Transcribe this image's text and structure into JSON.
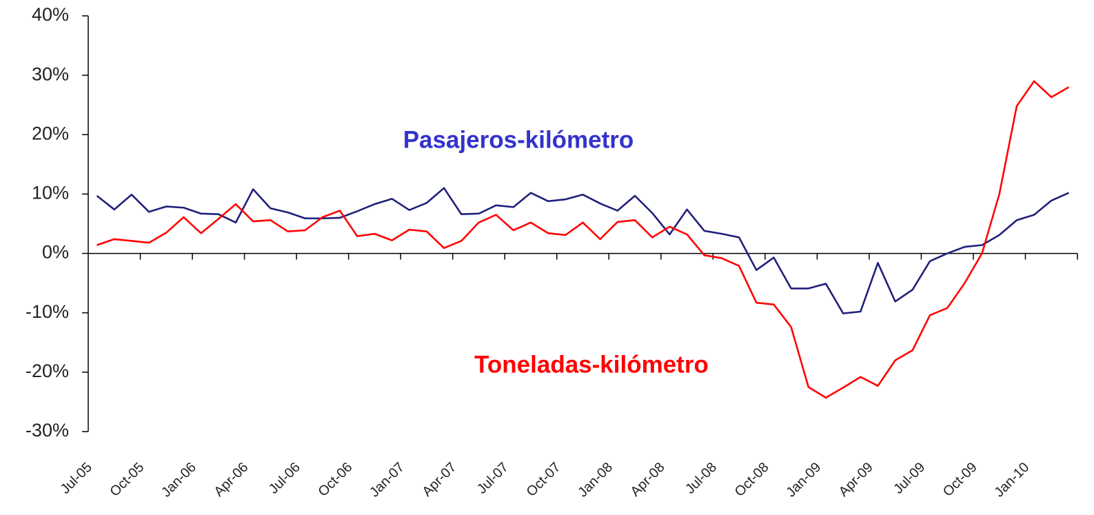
{
  "chart_data": {
    "type": "line",
    "categories": [
      "Jul-05",
      null,
      null,
      "Oct-05",
      null,
      null,
      "Jan-06",
      null,
      null,
      "Apr-06",
      null,
      null,
      "Jul-06",
      null,
      null,
      "Oct-06",
      null,
      null,
      "Jan-07",
      null,
      null,
      "Apr-07",
      null,
      null,
      "Jul-07",
      null,
      null,
      "Oct-07",
      null,
      null,
      "Jan-08",
      null,
      null,
      "Apr-08",
      null,
      null,
      "Jul-08",
      null,
      null,
      "Oct-08",
      null,
      null,
      "Jan-09",
      null,
      null,
      "Apr-09",
      null,
      null,
      "Jul-09",
      null,
      null,
      "Oct-09",
      null,
      null,
      "Jan-10",
      null,
      null
    ],
    "series": [
      {
        "name": "Pasajeros-kilómetro",
        "color": "#1f1f7a",
        "label_color": "#3333cc",
        "values": [
          9.7,
          7.4,
          9.9,
          7.0,
          7.9,
          7.7,
          6.7,
          6.6,
          5.2,
          10.8,
          7.6,
          6.9,
          5.9,
          5.9,
          6.0,
          7.1,
          8.3,
          9.2,
          7.3,
          8.5,
          11.0,
          6.6,
          6.7,
          8.1,
          7.8,
          10.2,
          8.8,
          9.1,
          9.9,
          8.4,
          7.2,
          9.7,
          6.8,
          3.2,
          7.4,
          3.8,
          3.3,
          2.7,
          -2.8,
          -0.7,
          -5.9,
          -5.9,
          -5.1,
          -10.1,
          -9.8,
          -1.6,
          -8.1,
          -6.1,
          -1.3,
          0.0,
          1.1,
          1.4,
          3.1,
          5.6,
          6.5,
          8.9,
          10.2
        ]
      },
      {
        "name": "Toneladas-kilómetro",
        "color": "#ff0000",
        "label_color": "#ff0000",
        "values": [
          1.4,
          2.4,
          2.1,
          1.8,
          3.5,
          6.1,
          3.4,
          5.8,
          8.3,
          5.4,
          5.6,
          3.7,
          3.9,
          6.1,
          7.2,
          2.9,
          3.3,
          2.2,
          4.0,
          3.7,
          0.9,
          2.1,
          5.2,
          6.5,
          3.9,
          5.2,
          3.4,
          3.1,
          5.2,
          2.4,
          5.3,
          5.6,
          2.7,
          4.5,
          3.2,
          -0.3,
          -0.8,
          -2.1,
          -8.3,
          -8.6,
          -12.4,
          -22.5,
          -24.3,
          -22.6,
          -20.8,
          -22.3,
          -18.0,
          -16.3,
          -10.4,
          -9.2,
          -5.0,
          0.0,
          10.0,
          24.8,
          29.0,
          26.3,
          28.0
        ]
      }
    ],
    "ylim": [
      -30,
      40
    ],
    "yticks": [
      {
        "value": -30,
        "label": "-30%"
      },
      {
        "value": -20,
        "label": "-20%"
      },
      {
        "value": -10,
        "label": "-10%"
      },
      {
        "value": 0,
        "label": "0%"
      },
      {
        "value": 10,
        "label": "10%"
      },
      {
        "value": 20,
        "label": "20%"
      },
      {
        "value": 30,
        "label": "30%"
      },
      {
        "value": 40,
        "label": "40%"
      }
    ],
    "grid": false
  }
}
